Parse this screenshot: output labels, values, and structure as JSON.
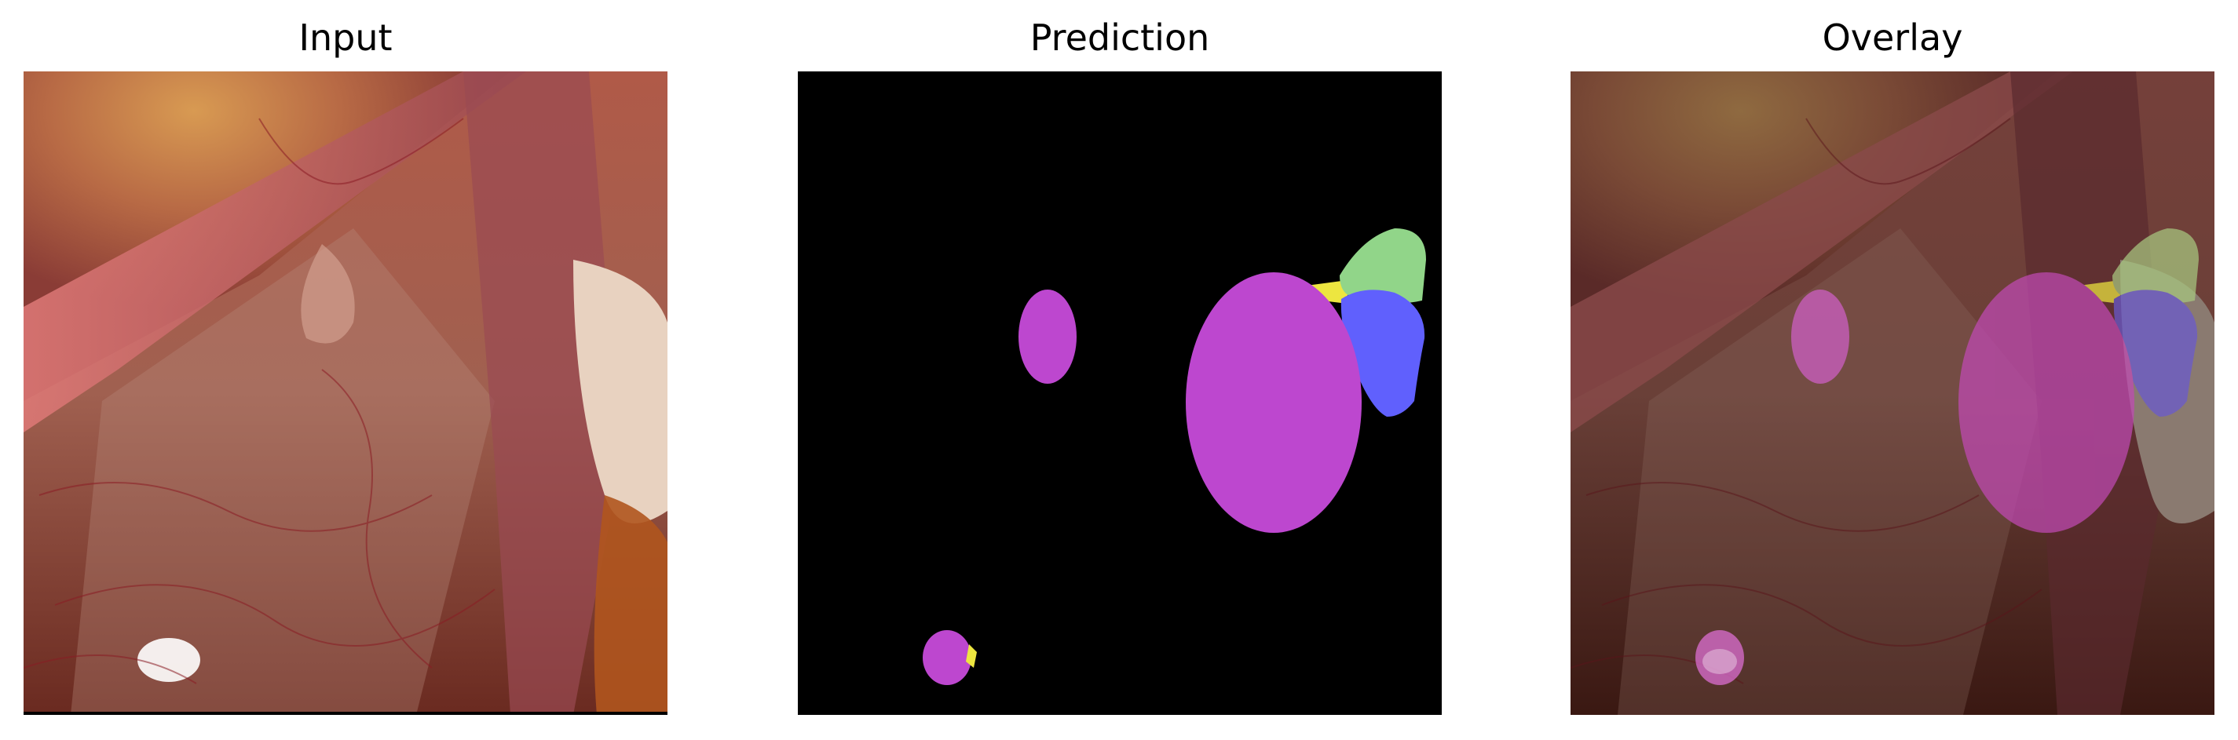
{
  "panels": {
    "input": {
      "title": "Input"
    },
    "prediction": {
      "title": "Prediction"
    },
    "overlay": {
      "title": "Overlay"
    }
  },
  "colors": {
    "background": "#ffffff",
    "prediction_background": "#000000",
    "segment_magenta": "#bd47cf",
    "segment_blue": "#6060fd",
    "segment_green": "#91d589",
    "segment_yellow": "#ede640"
  }
}
